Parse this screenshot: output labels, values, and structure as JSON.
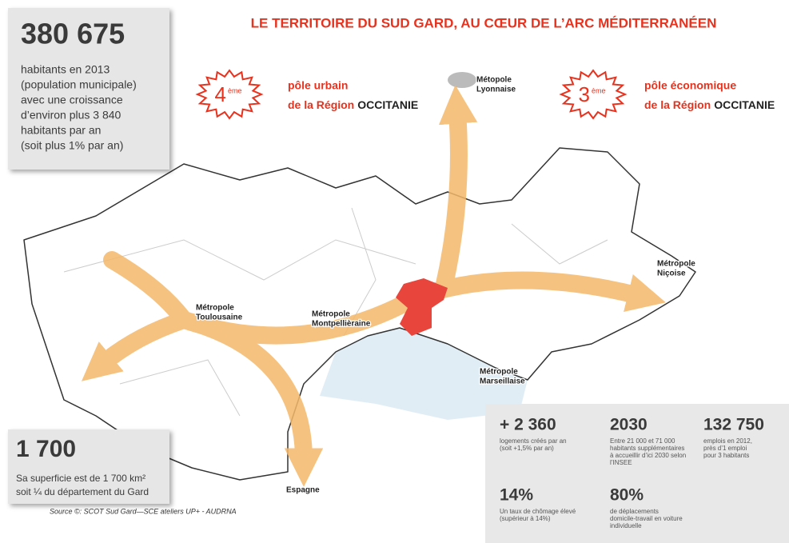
{
  "title": "LE TERRITOIRE DU SUD GARD, AU CŒUR DE L’ARC MÉDITERRANÉEN",
  "population": {
    "value": "380 675",
    "lines": [
      "habitants en 2013",
      "(population municipale)",
      "avec une croissance",
      "d’environ plus 3 840",
      "habitants par an",
      "(soit plus 1% par an)"
    ]
  },
  "rankings": [
    {
      "rank": "4",
      "suffix": "ème",
      "line1": "pôle urbain",
      "line2": "de la Région",
      "region": "OCCITANIE"
    },
    {
      "rank": "3",
      "suffix": "ème",
      "line1": "pôle économique",
      "line2": "de la Région",
      "region": "OCCITANIE"
    }
  ],
  "map_labels": [
    {
      "lines": [
        "Métopole",
        "Lyonnaise"
      ]
    },
    {
      "lines": [
        "Métropole",
        "Toulousaine"
      ]
    },
    {
      "lines": [
        "Métropole",
        "Montpellièraine"
      ]
    },
    {
      "lines": [
        "Métropole",
        "Niçoise"
      ]
    },
    {
      "lines": [
        "Métropole",
        "Marseillaise"
      ]
    },
    {
      "lines": [
        "Espagne"
      ]
    }
  ],
  "area": {
    "value": "1 700",
    "lines": [
      "Sa superficie est de 1 700 km²",
      "soit ¼ du département du Gard"
    ]
  },
  "source": "Source ©:  SCOT Sud Gard—SCE ateliers UP+ - AUDRNA",
  "stats": [
    {
      "value": "+ 2 360",
      "lines": [
        "logements créés par an",
        "(soit +1,5% par an)"
      ]
    },
    {
      "value": "2030",
      "lines": [
        "Entre 21 000 et 71 000",
        "habitants supplémentaires",
        "à accueillir d’ici 2030 selon",
        "l’INSEE"
      ]
    },
    {
      "value": "132 750",
      "lines": [
        "emplois en  2012,",
        "près d’1 emploi",
        "pour 3 habitants"
      ]
    },
    {
      "value": "14%",
      "lines": [
        "Un taux de chômage élevé",
        "(supérieur à 14%)"
      ]
    },
    {
      "value": "80%",
      "lines": [
        "de déplacements",
        "domicile-travail en voiture",
        "individuelle"
      ]
    }
  ]
}
